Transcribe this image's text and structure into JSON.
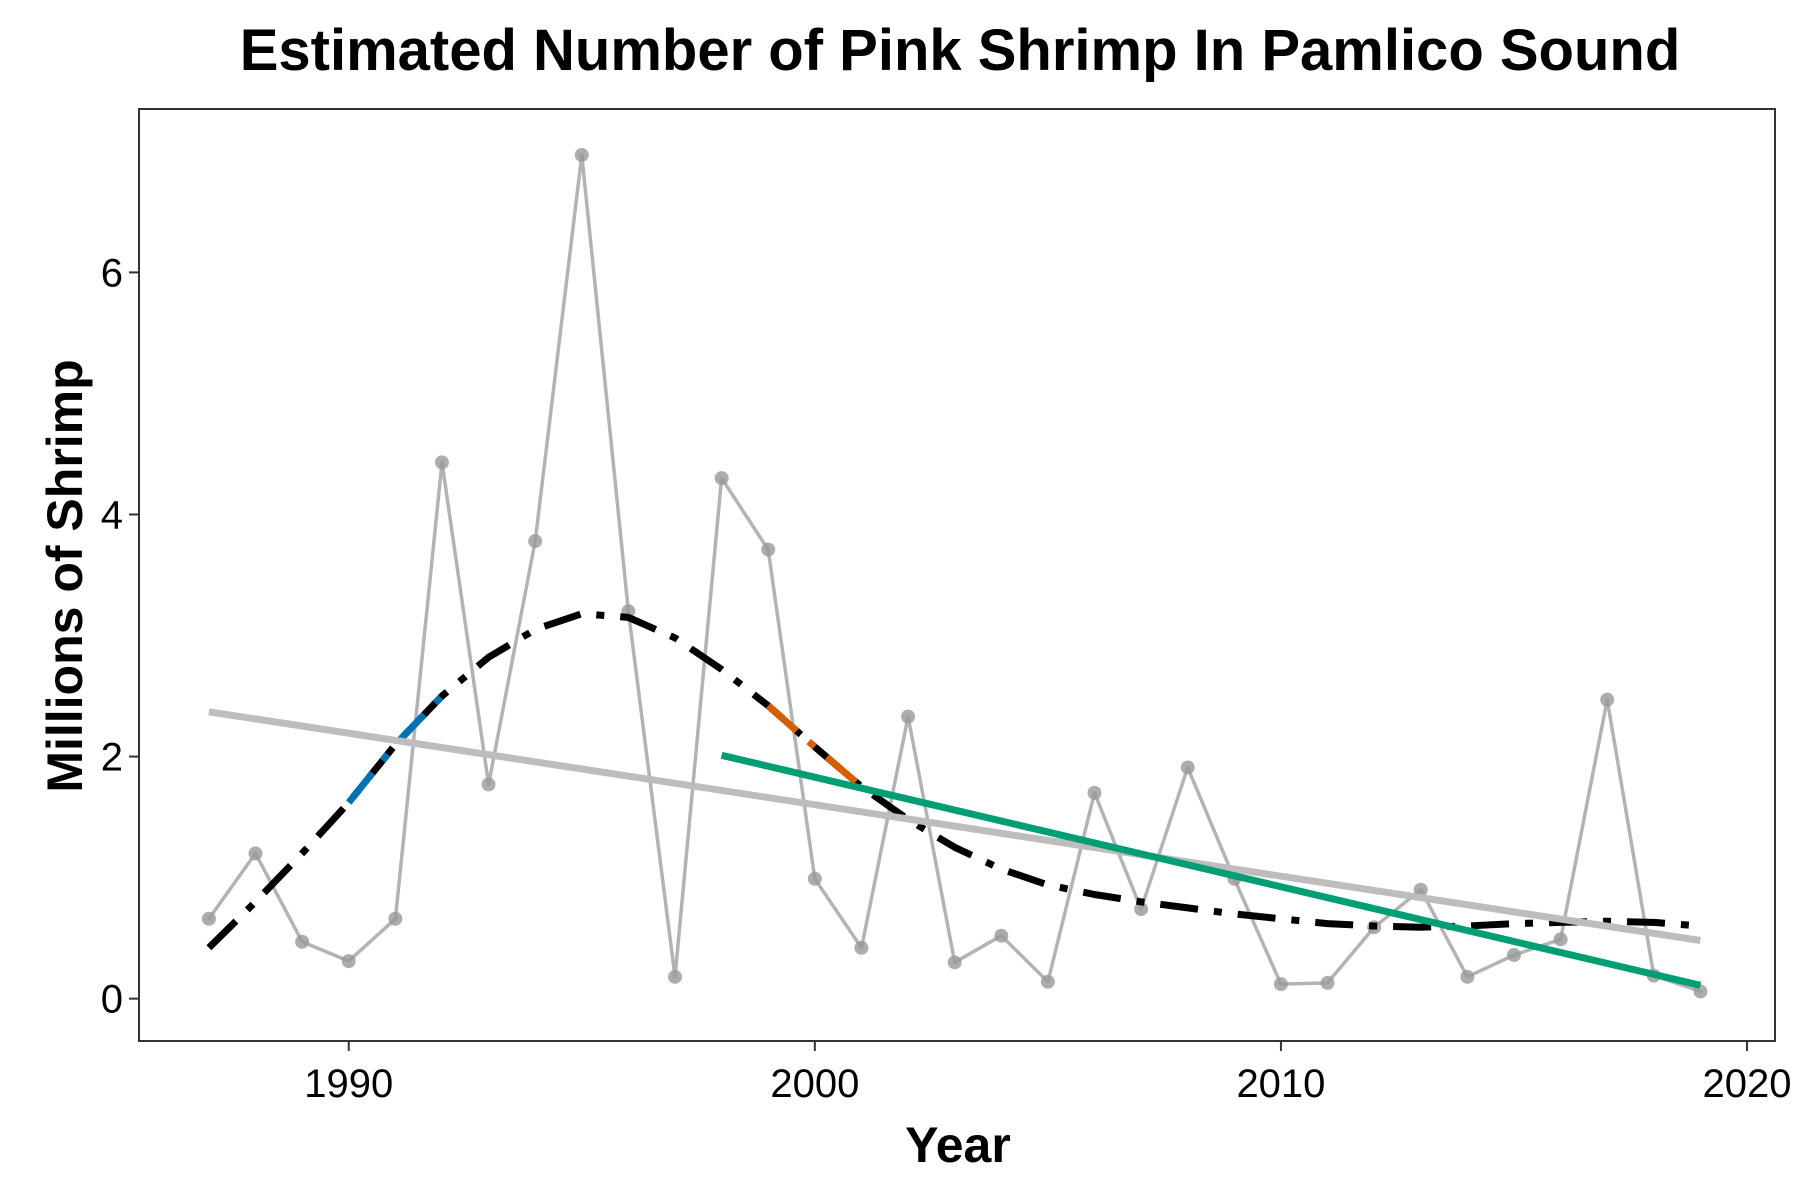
{
  "chart_data": {
    "type": "line",
    "title": "Estimated Number of Pink Shrimp In Pamlico Sound",
    "xlabel": "Year",
    "ylabel": "Millions of Shrimp",
    "xlim": [
      1985.5,
      2020.6
    ],
    "ylim": [
      -0.35,
      7.35
    ],
    "x_ticks": [
      1990,
      2000,
      2010,
      2020
    ],
    "y_ticks": [
      0,
      2,
      4,
      6
    ],
    "grid": false,
    "legend": "none",
    "series": [
      {
        "style": "observed",
        "color": "#b3b3b3",
        "x": [
          1987,
          1988,
          1989,
          1990,
          1991,
          1992,
          1993,
          1994,
          1995,
          1996,
          1997,
          1998,
          1999,
          2000,
          2001,
          2002,
          2003,
          2004,
          2005,
          2006,
          2007,
          2008,
          2009,
          2010,
          2011,
          2012,
          2013,
          2014,
          2015,
          2016,
          2017,
          2018,
          2019
        ],
        "values": [
          0.66,
          1.2,
          0.47,
          0.31,
          0.66,
          4.43,
          1.77,
          3.78,
          6.97,
          3.2,
          0.18,
          4.3,
          3.71,
          0.99,
          0.42,
          2.33,
          0.3,
          0.52,
          0.14,
          1.7,
          0.74,
          1.91,
          0.99,
          0.12,
          0.13,
          0.59,
          0.9,
          0.18,
          0.36,
          0.49,
          2.47,
          0.19,
          0.06
        ]
      },
      {
        "style": "smooth-trend",
        "color": "#000000",
        "x": [
          1987,
          1988,
          1989,
          1990,
          1991,
          1992,
          1993,
          1994,
          1995,
          1996,
          1997,
          1998,
          1999,
          2000,
          2001,
          2002,
          2003,
          2004,
          2005,
          2006,
          2007,
          2008,
          2009,
          2010,
          2011,
          2012,
          2013,
          2014,
          2015,
          2016,
          2017,
          2018,
          2019
        ],
        "values": [
          0.42,
          0.8,
          1.2,
          1.62,
          2.1,
          2.5,
          2.82,
          3.05,
          3.18,
          3.15,
          2.98,
          2.72,
          2.42,
          2.08,
          1.75,
          1.48,
          1.25,
          1.07,
          0.94,
          0.86,
          0.8,
          0.75,
          0.7,
          0.66,
          0.62,
          0.6,
          0.59,
          0.6,
          0.62,
          0.63,
          0.64,
          0.63,
          0.6
        ]
      },
      {
        "style": "increasing-segment",
        "color": "#0072b2",
        "x": [
          1990,
          1991,
          1992
        ],
        "values": [
          1.62,
          2.1,
          2.5
        ]
      },
      {
        "style": "decreasing-segment",
        "color": "#d55e00",
        "x": [
          1999,
          2000,
          2001
        ],
        "values": [
          2.42,
          2.08,
          1.75
        ]
      },
      {
        "style": "linear-trend-full",
        "color": "#bdbdbd",
        "x": [
          1987,
          2019
        ],
        "values": [
          2.37,
          0.48
        ]
      },
      {
        "style": "linear-trend-recent",
        "color": "#009e73",
        "x": [
          1998,
          2019
        ],
        "values": [
          2.01,
          0.11
        ]
      }
    ]
  }
}
